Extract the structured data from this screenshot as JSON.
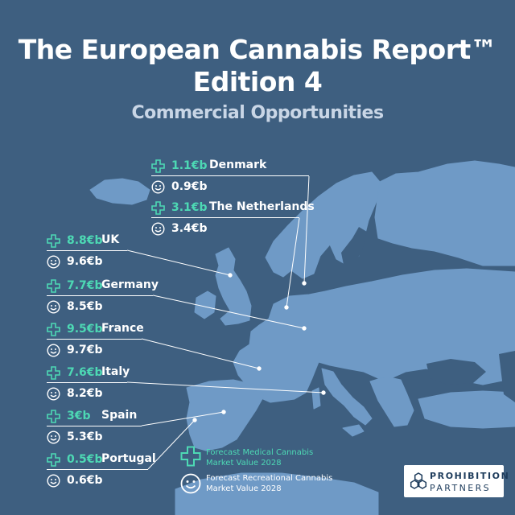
{
  "header": {
    "title_line1": "The European Cannabis Report™",
    "title_line2": "Edition 4",
    "subtitle": "Commercial Opportunities"
  },
  "countries": [
    {
      "name": "Denmark",
      "medical": "1.1€b",
      "recreational": "0.9€b"
    },
    {
      "name": "The Netherlands",
      "medical": "3.1€b",
      "recreational": "3.4€b"
    },
    {
      "name": "UK",
      "medical": "8.8€b",
      "recreational": "9.6€b"
    },
    {
      "name": "Germany",
      "medical": "7.7€b",
      "recreational": "8.5€b"
    },
    {
      "name": "France",
      "medical": "9.5€b",
      "recreational": "9.7€b"
    },
    {
      "name": "Italy",
      "medical": "7.6€b",
      "recreational": "8.2€b"
    },
    {
      "name": "Spain",
      "medical": "3€b",
      "recreational": "5.3€b"
    },
    {
      "name": "Portugal",
      "medical": "0.5€b",
      "recreational": "0.6€b"
    }
  ],
  "legend": {
    "medical_line1": "Forecast Medical Cannabis",
    "medical_line2": "Market Value 2028",
    "recreational_line1": "Forecast Recreational Cannabis",
    "recreational_line2": "Market Value 2028"
  },
  "logo": {
    "line1": "PROHIBITION",
    "line2": "PARTNERS"
  },
  "colors": {
    "background": "#3e5f80",
    "land": "#6f9ac6",
    "medical": "#4dd9b4",
    "text": "#ffffff"
  },
  "icons": {
    "medical": "medical-cross-icon",
    "recreational": "smiley-face-icon"
  }
}
